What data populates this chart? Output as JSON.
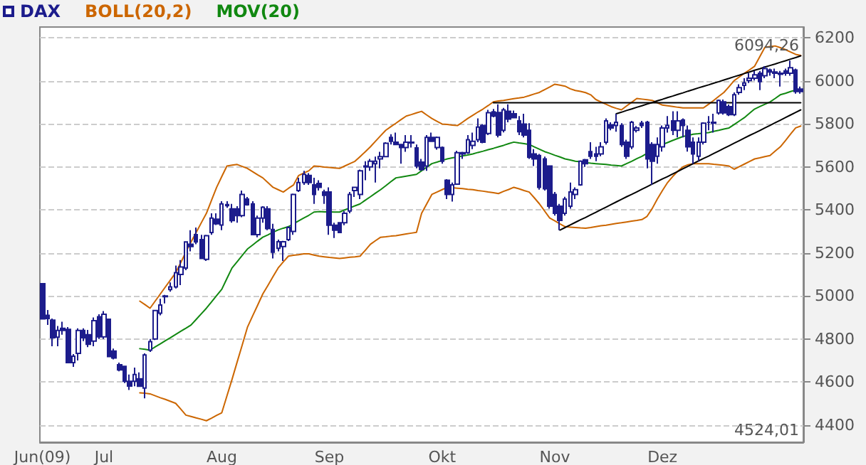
{
  "chart_data": {
    "type": "candlestick",
    "categories": [
      "Jun(09)",
      null,
      null,
      null,
      null,
      null,
      null,
      null,
      null,
      null,
      null,
      null,
      "Jul",
      null,
      null,
      null,
      null,
      null,
      null,
      null,
      null,
      null,
      null,
      null,
      null,
      null,
      null,
      null,
      null,
      null,
      null,
      null,
      null,
      null,
      null,
      "Aug",
      null,
      null,
      null,
      null,
      null,
      null,
      null,
      null,
      null,
      null,
      null,
      null,
      null,
      null,
      null,
      null,
      null,
      null,
      null,
      null,
      "Sep",
      null,
      null,
      null,
      null,
      null,
      null,
      null,
      null,
      null,
      null,
      null,
      null,
      null,
      null,
      null,
      null,
      null,
      null,
      null,
      null,
      null,
      "Okt",
      null,
      null,
      null,
      null,
      null,
      null,
      null,
      null,
      null,
      null,
      null,
      null,
      null,
      null,
      null,
      null,
      null,
      null,
      null,
      null,
      null,
      "Nov",
      null,
      null,
      null,
      null,
      null,
      null,
      null,
      null,
      null,
      null,
      null,
      null,
      null,
      null,
      null,
      null,
      null,
      null,
      null,
      null,
      "Dez",
      null,
      null,
      null,
      null,
      null,
      null,
      null,
      null,
      null,
      null,
      null,
      null,
      null,
      null,
      null,
      null,
      null,
      null,
      null,
      null,
      null,
      null,
      null,
      null,
      null,
      null,
      null
    ],
    "series": [
      {
        "name": "DAX",
        "color": "#1c1c8c",
        "ohlc": [
          [
            5057,
            5057,
            4893,
            4893
          ],
          [
            4910,
            4935,
            4865,
            4895
          ],
          [
            4888,
            4895,
            4766,
            4806
          ],
          [
            4808,
            4860,
            4766,
            4840
          ],
          [
            4850,
            4880,
            4820,
            4840
          ],
          [
            4845,
            4855,
            4690,
            4690
          ],
          [
            4690,
            4730,
            4670,
            4720
          ],
          [
            4733,
            4850,
            4700,
            4840
          ],
          [
            4840,
            4850,
            4790,
            4806
          ],
          [
            4820,
            4842,
            4762,
            4775
          ],
          [
            4790,
            4900,
            4766,
            4885
          ],
          [
            4903,
            4915,
            4800,
            4810
          ],
          [
            4810,
            4930,
            4800,
            4915
          ],
          [
            4892,
            4892,
            4718,
            4718
          ],
          [
            4744,
            4755,
            4705,
            4712
          ],
          [
            4680,
            4690,
            4650,
            4656
          ],
          [
            4673,
            4673,
            4595,
            4603
          ],
          [
            4603,
            4635,
            4563,
            4581
          ],
          [
            4603,
            4667,
            4580,
            4635
          ],
          [
            4615,
            4645,
            4580,
            4580
          ],
          [
            4572,
            4733,
            4524.01,
            4726
          ],
          [
            4748,
            4800,
            4740,
            4788
          ],
          [
            4800,
            4932,
            4795,
            4932
          ],
          [
            4920,
            4987,
            4910,
            4958
          ],
          [
            4997,
            5005,
            4965,
            5000
          ],
          [
            5030,
            5063,
            5020,
            5042
          ],
          [
            5042,
            5141,
            5035,
            5108
          ],
          [
            5100,
            5167,
            5050,
            5135
          ],
          [
            5130,
            5251,
            5120,
            5251
          ],
          [
            5240,
            5306,
            5207,
            5230
          ],
          [
            5285,
            5318,
            5240,
            5251
          ],
          [
            5262,
            5284,
            5174,
            5174
          ],
          [
            5170,
            5284,
            5163,
            5280
          ],
          [
            5295,
            5384,
            5284,
            5362
          ],
          [
            5357,
            5384,
            5330,
            5335
          ],
          [
            5330,
            5440,
            5306,
            5428
          ],
          [
            5425,
            5440,
            5410,
            5420
          ],
          [
            5405,
            5428,
            5340,
            5350
          ],
          [
            5405,
            5417,
            5340,
            5373
          ],
          [
            5373,
            5490,
            5366,
            5472
          ],
          [
            5450,
            5460,
            5420,
            5424
          ],
          [
            5428,
            5440,
            5285,
            5285
          ],
          [
            5285,
            5373,
            5273,
            5362
          ],
          [
            5362,
            5417,
            5340,
            5412
          ],
          [
            5405,
            5417,
            5306,
            5313
          ],
          [
            5309,
            5335,
            5174,
            5203
          ],
          [
            5221,
            5262,
            5207,
            5252
          ],
          [
            5230,
            5256,
            5163,
            5252
          ],
          [
            5262,
            5324,
            5255,
            5318
          ],
          [
            5300,
            5476,
            5284,
            5472
          ],
          [
            5490,
            5549,
            5483,
            5527
          ],
          [
            5527,
            5582,
            5516,
            5565
          ],
          [
            5560,
            5571,
            5516,
            5527
          ],
          [
            5516,
            5549,
            5428,
            5472
          ],
          [
            5523,
            5538,
            5490,
            5505
          ],
          [
            5483,
            5494,
            5428,
            5468
          ],
          [
            5483,
            5505,
            5284,
            5329
          ],
          [
            5329,
            5340,
            5269,
            5306
          ],
          [
            5340,
            5340,
            5295,
            5295
          ],
          [
            5340,
            5395,
            5329,
            5384
          ],
          [
            5395,
            5483,
            5384,
            5472
          ],
          [
            5490,
            5505,
            5460,
            5505
          ],
          [
            5472,
            5587,
            5450,
            5582
          ],
          [
            5600,
            5626,
            5538,
            5604
          ],
          [
            5600,
            5637,
            5582,
            5626
          ],
          [
            5615,
            5648,
            5527,
            5626
          ],
          [
            5637,
            5670,
            5593,
            5648
          ],
          [
            5648,
            5715,
            5644,
            5710
          ],
          [
            5737,
            5752,
            5704,
            5719
          ],
          [
            5715,
            5759,
            5704,
            5704
          ],
          [
            5704,
            5704,
            5615,
            5690
          ],
          [
            5690,
            5748,
            5670,
            5715
          ],
          [
            5715,
            5748,
            5690,
            5711
          ],
          [
            5688,
            5704,
            5593,
            5604
          ],
          [
            5622,
            5637,
            5582,
            5587
          ],
          [
            5604,
            5748,
            5582,
            5737
          ],
          [
            5737,
            5759,
            5719,
            5719
          ],
          [
            5690,
            5741,
            5680,
            5737
          ],
          [
            5690,
            5695,
            5615,
            5626
          ],
          [
            5538,
            5543,
            5450,
            5472
          ],
          [
            5472,
            5527,
            5439,
            5516
          ],
          [
            5520,
            5675,
            5516,
            5666
          ],
          [
            5666,
            5670,
            5637,
            5660
          ],
          [
            5666,
            5748,
            5660,
            5726
          ],
          [
            5700,
            5759,
            5682,
            5719
          ],
          [
            5726,
            5825,
            5715,
            5785
          ],
          [
            5792,
            5799,
            5710,
            5715
          ],
          [
            5755,
            5865,
            5748,
            5852
          ],
          [
            5856,
            5869,
            5830,
            5836
          ],
          [
            5853,
            5891,
            5737,
            5748
          ],
          [
            5770,
            5874,
            5760,
            5865
          ],
          [
            5858,
            5891,
            5807,
            5822
          ],
          [
            5847,
            5862,
            5825,
            5829
          ],
          [
            5814,
            5836,
            5748,
            5763
          ],
          [
            5799,
            5847,
            5737,
            5748
          ],
          [
            5770,
            5803,
            5637,
            5644
          ],
          [
            5660,
            5682,
            5604,
            5637
          ],
          [
            5653,
            5660,
            5494,
            5505
          ],
          [
            5637,
            5648,
            5490,
            5498
          ],
          [
            5604,
            5604,
            5406,
            5417
          ],
          [
            5472,
            5483,
            5373,
            5384
          ],
          [
            5417,
            5428,
            5306,
            5351
          ],
          [
            5384,
            5461,
            5373,
            5450
          ],
          [
            5417,
            5527,
            5406,
            5483
          ],
          [
            5472,
            5505,
            5450,
            5494
          ],
          [
            5516,
            5630,
            5512,
            5626
          ],
          [
            5633,
            5637,
            5600,
            5615
          ],
          [
            5671,
            5715,
            5637,
            5649
          ],
          [
            5660,
            5693,
            5626,
            5649
          ],
          [
            5660,
            5715,
            5649,
            5693
          ],
          [
            5715,
            5825,
            5704,
            5814
          ],
          [
            5796,
            5807,
            5770,
            5781
          ],
          [
            5792,
            5847,
            5763,
            5807
          ],
          [
            5792,
            5803,
            5693,
            5704
          ],
          [
            5715,
            5726,
            5637,
            5649
          ],
          [
            5693,
            5814,
            5682,
            5807
          ],
          [
            5770,
            5790,
            5760,
            5781
          ],
          [
            5803,
            5814,
            5781,
            5792
          ],
          [
            5807,
            5814,
            5593,
            5637
          ],
          [
            5704,
            5715,
            5516,
            5626
          ],
          [
            5649,
            5737,
            5615,
            5704
          ],
          [
            5693,
            5792,
            5671,
            5781
          ],
          [
            5781,
            5836,
            5759,
            5792
          ],
          [
            5814,
            5858,
            5748,
            5770
          ],
          [
            5770,
            5858,
            5737,
            5814
          ],
          [
            5818,
            5825,
            5737,
            5792
          ],
          [
            5770,
            5792,
            5671,
            5693
          ],
          [
            5715,
            5737,
            5615,
            5660
          ],
          [
            5649,
            5737,
            5626,
            5715
          ],
          [
            5715,
            5807,
            5704,
            5803
          ],
          [
            5807,
            5836,
            5770,
            5807
          ],
          [
            5807,
            5847,
            5759,
            5803
          ],
          [
            5851,
            5913,
            5843,
            5909
          ],
          [
            5902,
            5913,
            5843,
            5851
          ],
          [
            5880,
            5890,
            5836,
            5843
          ],
          [
            5843,
            5946,
            5836,
            5935
          ],
          [
            5946,
            5984,
            5935,
            5968
          ],
          [
            5979,
            6012,
            5957,
            5990
          ],
          [
            6001,
            6035,
            5990,
            6012
          ],
          [
            6012,
            6046,
            6001,
            6028
          ],
          [
            6035,
            6046,
            5957,
            5996
          ],
          [
            6024,
            6068,
            6012,
            6057
          ],
          [
            6050,
            6057,
            6024,
            6041
          ],
          [
            6041,
            6057,
            6012,
            6035
          ],
          [
            6035,
            6046,
            5973,
            6030
          ],
          [
            6046,
            6057,
            6024,
            6035
          ],
          [
            6035,
            6094.26,
            6024,
            6061
          ],
          [
            6050,
            6057,
            5940,
            5950
          ],
          [
            5962,
            5973,
            5940,
            5950
          ]
        ]
      },
      {
        "name": "BOLL(20,2)",
        "type": "line",
        "color": "#cc6600",
        "values": [
          null,
          null,
          null,
          null,
          null,
          null,
          null,
          null,
          null,
          null,
          null,
          null,
          null,
          null,
          null,
          null,
          null,
          null,
          null,
          4976,
          4960,
          4943,
          4976,
          5009,
          5042,
          5075,
          5108,
          5155,
          5205,
          5251,
          5295,
          5340,
          5384,
          5445,
          5505,
          5555,
          5604,
          5608,
          5611,
          5602,
          5593,
          5578,
          5563,
          5549,
          5527,
          5505,
          5494,
          5483,
          5500,
          5516,
          5560,
          5571,
          5582,
          5604,
          5602,
          5599,
          5597,
          5595,
          5593,
          5604,
          5615,
          5626,
          5648,
          5670,
          5693,
          5719,
          5745,
          5770,
          5787,
          5803,
          5820,
          5836,
          5843,
          5851,
          5858,
          5841,
          5825,
          5812,
          5799,
          5797,
          5794,
          5792,
          5808,
          5825,
          5840,
          5855,
          5869,
          5885,
          5902,
          5906,
          5909,
          5913,
          5917,
          5920,
          5924,
          5931,
          5939,
          5946,
          5959,
          5971,
          5984,
          5980,
          5975,
          5963,
          5955,
          5951,
          5945,
          5935,
          5913,
          5902,
          5891,
          5880,
          5872,
          5865,
          5883,
          5900,
          5918,
          5915,
          5912,
          5909,
          5898,
          5887,
          5884,
          5881,
          5877,
          5874,
          5874,
          5874,
          5874,
          5874,
          5891,
          5909,
          5928,
          5946,
          5973,
          6001,
          6018,
          6035,
          6051,
          6068,
          6112,
          6156,
          6159,
          6162,
          6154,
          6145,
          6134,
          6123,
          6118
        ]
      },
      {
        "type": "line",
        "color": "#cc6600",
        "values": [
          null,
          null,
          null,
          null,
          null,
          null,
          null,
          null,
          null,
          null,
          null,
          null,
          null,
          null,
          null,
          null,
          null,
          null,
          null,
          4550,
          4548,
          4545,
          4536,
          4527,
          4519,
          4510,
          4501,
          4474,
          4446,
          4440,
          4433,
          4427,
          4420,
          4432,
          4445,
          4457,
          4535,
          4612,
          4693,
          4773,
          4854,
          4906,
          4957,
          5009,
          5049,
          5090,
          5130,
          5158,
          5185,
          5189,
          5192,
          5196,
          5196,
          5190,
          5185,
          5182,
          5179,
          5177,
          5174,
          5177,
          5180,
          5182,
          5185,
          5212,
          5240,
          5257,
          5273,
          5275,
          5278,
          5280,
          5284,
          5288,
          5292,
          5296,
          5384,
          5428,
          5472,
          5483,
          5494,
          5505,
          5503,
          5501,
          5499,
          5496,
          5494,
          5490,
          5487,
          5483,
          5480,
          5476,
          5486,
          5495,
          5505,
          5498,
          5490,
          5483,
          5456,
          5428,
          5395,
          5362,
          5349,
          5335,
          5322,
          5320,
          5318,
          5316,
          5315,
          5318,
          5322,
          5326,
          5329,
          5333,
          5337,
          5340,
          5344,
          5348,
          5351,
          5355,
          5370,
          5406,
          5450,
          5490,
          5527,
          5555,
          5580,
          5600,
          5610,
          5615,
          5615,
          5615,
          5615,
          5612,
          5610,
          5607,
          5604,
          5589,
          5601,
          5613,
          5625,
          5637,
          5642,
          5648,
          5653,
          5673,
          5693,
          5722,
          5752,
          5781,
          5790
        ]
      },
      {
        "name": "MOV(20)",
        "type": "line",
        "color": "#118811",
        "values": [
          null,
          null,
          null,
          null,
          null,
          null,
          null,
          null,
          null,
          null,
          null,
          null,
          null,
          null,
          null,
          null,
          null,
          null,
          null,
          4755,
          4752,
          4748,
          4763,
          4777,
          4792,
          4806,
          4821,
          4836,
          4850,
          4865,
          4891,
          4917,
          4943,
          4972,
          5002,
          5031,
          5081,
          5130,
          5159,
          5189,
          5218,
          5236,
          5255,
          5273,
          5284,
          5296,
          5307,
          5315,
          5322,
          5335,
          5349,
          5362,
          5375,
          5390,
          5392,
          5391,
          5391,
          5390,
          5390,
          5400,
          5409,
          5419,
          5428,
          5445,
          5461,
          5478,
          5494,
          5512,
          5531,
          5549,
          5553,
          5557,
          5561,
          5565,
          5582,
          5598,
          5615,
          5622,
          5630,
          5637,
          5642,
          5646,
          5651,
          5655,
          5660,
          5667,
          5673,
          5680,
          5686,
          5693,
          5700,
          5708,
          5715,
          5711,
          5708,
          5704,
          5693,
          5682,
          5671,
          5663,
          5654,
          5646,
          5637,
          5632,
          5626,
          5624,
          5620,
          5617,
          5615,
          5613,
          5611,
          5608,
          5606,
          5604,
          5615,
          5626,
          5638,
          5649,
          5663,
          null,
          null,
          5704,
          5713,
          5723,
          5732,
          5741,
          5746,
          5752,
          5754,
          5757,
          5759,
          5765,
          5770,
          5776,
          5781,
          5797,
          5813,
          5829,
          5849,
          5869,
          5880,
          5891,
          5902,
          5918,
          5935,
          5942,
          5950,
          5957,
          null
        ]
      },
      {
        "type": "line",
        "color": "#000000",
        "values": [
          null,
          null,
          null,
          null,
          null,
          null,
          null,
          null,
          null,
          null,
          null,
          null,
          null,
          null,
          null,
          null,
          null,
          null,
          null,
          null,
          null,
          null,
          null,
          null,
          null,
          null,
          null,
          null,
          null,
          null,
          null,
          null,
          null,
          null,
          null,
          null,
          null,
          null,
          null,
          null,
          null,
          null,
          null,
          null,
          null,
          null,
          null,
          null,
          null,
          null,
          null,
          null,
          null,
          null,
          null,
          null,
          null,
          null,
          null,
          null,
          null,
          null,
          null,
          null,
          null,
          null,
          null,
          null,
          null,
          null,
          null,
          null,
          null,
          null,
          null,
          null,
          null,
          null,
          null,
          null,
          null,
          null,
          null,
          null,
          null,
          null,
          null,
          null,
          5898,
          5898,
          5898,
          5898,
          5898,
          5898,
          5898,
          5898,
          5898,
          5898,
          5898,
          5898,
          5898,
          5898,
          5898,
          5898,
          5898,
          5898,
          5898,
          5898,
          5898,
          5898,
          5898,
          5898,
          5898,
          5898,
          5898,
          5898,
          5898,
          5898,
          5898,
          5898,
          5898,
          5898,
          5898,
          5898,
          5898,
          5898,
          5898,
          5898,
          5898,
          5898,
          5898,
          5898,
          5898,
          5898,
          5898,
          5898,
          5898,
          5898,
          5898,
          5898,
          5898,
          5898,
          5898,
          5898,
          5898,
          5898,
          5898,
          5898,
          5898
        ]
      },
      {
        "type": "line",
        "color": "#000000",
        "values": [
          null,
          null,
          null,
          null,
          null,
          null,
          null,
          null,
          null,
          null,
          null,
          null,
          null,
          null,
          null,
          null,
          null,
          null,
          null,
          null,
          null,
          null,
          null,
          null,
          null,
          null,
          null,
          null,
          null,
          null,
          null,
          null,
          null,
          null,
          null,
          null,
          null,
          null,
          null,
          null,
          null,
          null,
          null,
          null,
          null,
          null,
          null,
          null,
          null,
          null,
          null,
          null,
          null,
          null,
          null,
          null,
          null,
          null,
          null,
          null,
          null,
          null,
          null,
          null,
          null,
          null,
          null,
          null,
          null,
          null,
          null,
          null,
          null,
          null,
          null,
          null,
          null,
          null,
          null,
          null,
          null,
          null,
          null,
          null,
          null,
          null,
          null,
          null,
          null,
          null,
          null,
          null,
          null,
          null,
          null,
          null,
          null,
          null,
          null,
          null,
          null,
          5306,
          5318,
          5330,
          5342,
          5354,
          5365,
          5377,
          5389,
          5401,
          5413,
          5425,
          5437,
          5449,
          5461,
          5472,
          5484,
          5496,
          5508,
          5520,
          5532,
          5544,
          5555,
          5567,
          5579,
          5591,
          5603,
          5615,
          5627,
          5639,
          5650,
          5662,
          5674,
          5686,
          5698,
          5710,
          5722,
          5734,
          5746,
          5757,
          5769,
          5781,
          5793,
          5805,
          5817,
          5829,
          5841,
          5853,
          5865
        ]
      },
      {
        "type": "line",
        "color": "#000000",
        "values": [
          null,
          null,
          null,
          null,
          null,
          null,
          null,
          null,
          null,
          null,
          null,
          null,
          null,
          null,
          null,
          null,
          null,
          null,
          null,
          null,
          null,
          null,
          null,
          null,
          null,
          null,
          null,
          null,
          null,
          null,
          null,
          null,
          null,
          null,
          null,
          null,
          null,
          null,
          null,
          null,
          null,
          null,
          null,
          null,
          null,
          null,
          null,
          null,
          null,
          null,
          null,
          null,
          null,
          null,
          null,
          null,
          null,
          null,
          null,
          null,
          null,
          null,
          null,
          null,
          null,
          null,
          null,
          null,
          null,
          null,
          null,
          null,
          null,
          null,
          null,
          null,
          null,
          null,
          null,
          null,
          null,
          null,
          null,
          null,
          null,
          null,
          null,
          null,
          null,
          null,
          null,
          null,
          null,
          null,
          null,
          null,
          null,
          null,
          null,
          null,
          null,
          null,
          null,
          null,
          null,
          null,
          null,
          null,
          null,
          null,
          null,
          null,
          5847,
          5854,
          5862,
          5869,
          5877,
          5884,
          5892,
          5899,
          5907,
          5914,
          5922,
          5929,
          5937,
          5944,
          5952,
          5959,
          5967,
          5974,
          5981,
          5989,
          5996,
          6004,
          6011,
          6019,
          6026,
          6034,
          6041,
          6049,
          6056,
          6064,
          6071,
          6078,
          6086,
          6093,
          6101,
          6108,
          6116
        ]
      }
    ],
    "ylim": [
      4320,
      6250
    ],
    "yticks": [
      4400,
      4600,
      4800,
      5000,
      5200,
      5400,
      5600,
      5800,
      6000,
      6200
    ],
    "grid": "y",
    "legend": "top left",
    "marker": "none",
    "annotations": [
      {
        "text": "6094,26",
        "y": 6094.26
      },
      "4524,01"
    ]
  }
}
